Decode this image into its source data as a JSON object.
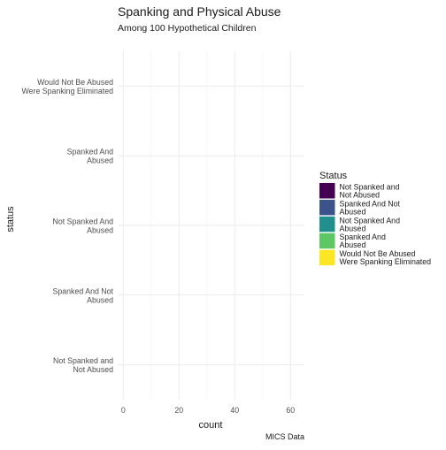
{
  "chart_data": {
    "type": "bar",
    "orientation": "horizontal",
    "title": "Spanking and Physical Abuse",
    "subtitle": "Among 100 Hypothetical Children",
    "xlabel": "count",
    "ylabel": "status",
    "caption": "MICS Data",
    "categories": [
      "Would Not Be Abused\nWere Spanking Eliminated",
      "Spanked And\nAbused",
      "Not Spanked And\nAbused",
      "Spanked And Not\nAbused",
      "Not Spanked and\nNot Abused"
    ],
    "values": [
      0,
      0,
      0,
      0,
      0
    ],
    "xlim": [
      -2,
      65
    ],
    "x_ticks": [
      "0",
      "20",
      "40",
      "60"
    ],
    "grid": true,
    "legend": {
      "title": "Status",
      "placement": "right",
      "entries": [
        {
          "label": "Not Spanked and\nNot Abused",
          "color": "#440154"
        },
        {
          "label": "Spanked And Not\nAbused",
          "color": "#3B528B"
        },
        {
          "label": "Not Spanked And\nAbused",
          "color": "#21908C"
        },
        {
          "label": "Spanked And\nAbused",
          "color": "#5DC863"
        },
        {
          "label": "Would Not Be Abused\nWere Spanking Eliminated",
          "color": "#FDE725"
        }
      ]
    }
  }
}
